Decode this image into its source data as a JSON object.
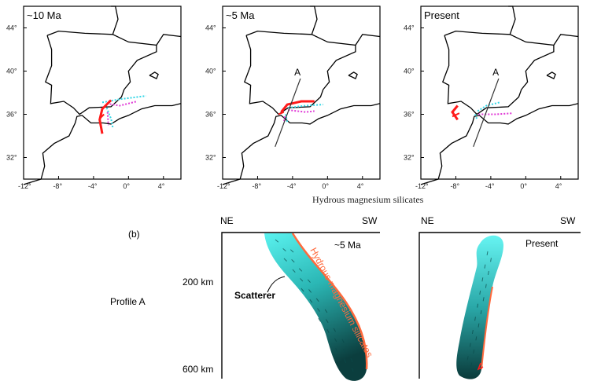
{
  "top_panels": {
    "x_ticks": [
      "-12°",
      "-8°",
      "-4°",
      "0°",
      "4°"
    ],
    "y_ticks": [
      "44°",
      "40°",
      "36°",
      "32°"
    ],
    "panels": [
      {
        "title": "~10 Ma",
        "profile_label": ""
      },
      {
        "title": "~5 Ma",
        "profile_label": "A"
      },
      {
        "title": "Present",
        "profile_label": "A"
      }
    ],
    "colors": {
      "slab": "#ff1a1a",
      "cyan": "#33d6e6",
      "magenta": "#e03ad6"
    }
  },
  "caption_top": "Hydrous magnesium silicates",
  "bottom": {
    "label_b": "(b)",
    "profile_label": "Profile A",
    "depth_labels": [
      "200 km",
      "600 km"
    ],
    "left_section": {
      "ne": "NE",
      "sw": "SW",
      "age": "~5 Ma",
      "scatterer": "Scatterer",
      "hms": "Hydrous magnesium silicates"
    },
    "right_section": {
      "ne": "NE",
      "sw": "SW",
      "age": "Present"
    },
    "colors": {
      "slab_top": "#4ff0ee",
      "slab_bottom": "#0b4a4a",
      "rim": "#ff6a3d"
    }
  }
}
